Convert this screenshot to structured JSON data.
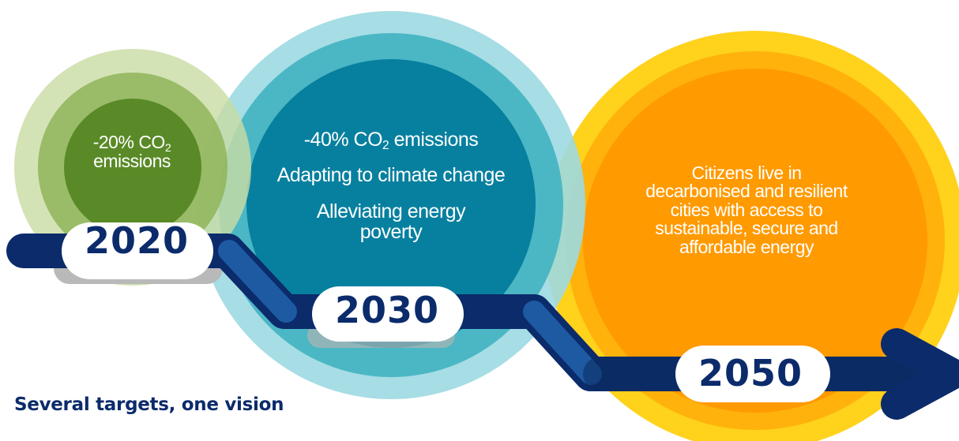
{
  "colors": {
    "green_outer": "#d4e2b6",
    "green_mid": "#a3c26b",
    "green_inner": "#5b8a2a",
    "teal_outer": "#a5dde4",
    "teal_mid": "#46b3c1",
    "teal_inner": "#007b9c",
    "yellow_outer": "#ffd21c",
    "orange_mid": "#ffb20c",
    "orange_inner": "#ff9a00",
    "navy": "#0b2b6b",
    "arrow_blue": "#1f5fa8"
  },
  "milestones": [
    {
      "year": "2020",
      "co2_prefix": "-20% CO",
      "co2_sub": "2",
      "co2_suffix": "emissions"
    },
    {
      "year": "2030",
      "co2_prefix": "-40% CO",
      "co2_sub": "2",
      "co2_suffix": " emissions",
      "line2": "Adapting to climate change",
      "line3a": "Alleviating energy",
      "line3b": "poverty"
    },
    {
      "year": "2050",
      "lines": [
        "Citizens live in",
        "decarbonised and resilient",
        "cities with access to",
        "sustainable, secure and",
        "affordable energy"
      ]
    }
  ],
  "caption": "Several targets, one vision"
}
